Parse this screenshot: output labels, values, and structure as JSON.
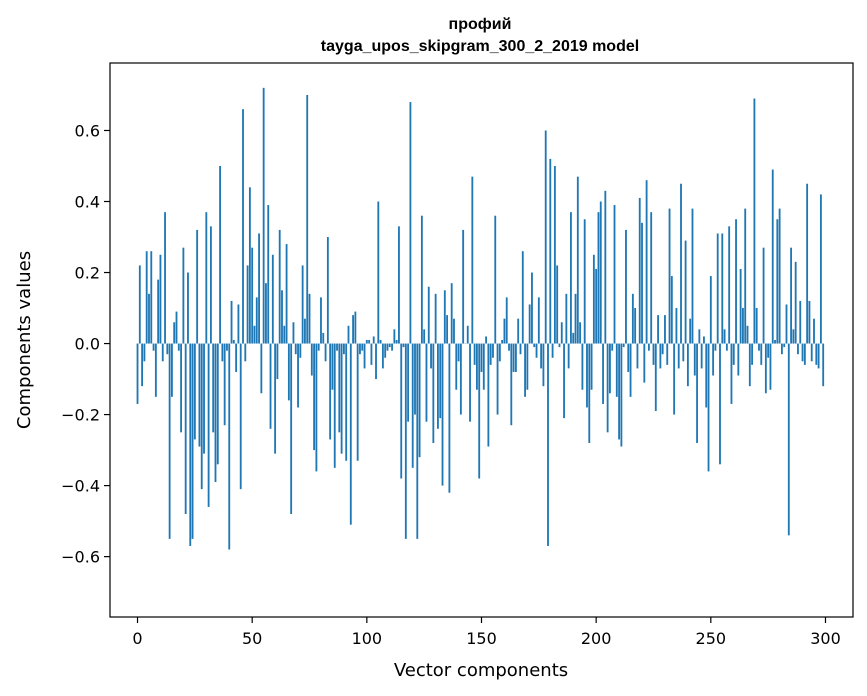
{
  "chart_data": {
    "type": "bar",
    "title": "профий",
    "subtitle": "tayga_upos_skipgram_300_2_2019 model",
    "xlabel": "Vector components",
    "ylabel": "Components values",
    "xlim": [
      -12,
      312
    ],
    "ylim": [
      -0.77,
      0.79
    ],
    "x_ticks": [
      0,
      50,
      100,
      150,
      200,
      250,
      300
    ],
    "y_ticks": [
      -0.6,
      -0.4,
      -0.2,
      0.0,
      0.2,
      0.4,
      0.6
    ],
    "x_tick_labels": [
      "0",
      "50",
      "100",
      "150",
      "200",
      "250",
      "300"
    ],
    "y_tick_labels": [
      "−0.6",
      "−0.4",
      "−0.2",
      "0.0",
      "0.2",
      "0.4",
      "0.6"
    ],
    "bar_color": "#1f77b4",
    "grid": false,
    "values": [
      -0.17,
      0.22,
      -0.12,
      -0.05,
      0.26,
      0.14,
      0.26,
      -0.02,
      -0.15,
      0.18,
      0.25,
      -0.05,
      0.37,
      -0.03,
      -0.55,
      -0.15,
      0.06,
      0.09,
      -0.02,
      -0.25,
      0.27,
      -0.48,
      0.2,
      -0.57,
      -0.55,
      -0.27,
      0.32,
      -0.29,
      -0.41,
      -0.31,
      0.37,
      -0.46,
      0.33,
      -0.25,
      -0.39,
      -0.34,
      0.5,
      -0.05,
      -0.23,
      -0.02,
      -0.58,
      0.12,
      0.01,
      -0.08,
      0.11,
      -0.41,
      0.66,
      -0.05,
      0.22,
      0.44,
      0.27,
      0.05,
      0.13,
      0.31,
      -0.14,
      0.72,
      0.17,
      0.39,
      -0.24,
      0.25,
      -0.31,
      -0.1,
      0.32,
      0.15,
      0.05,
      0.28,
      -0.16,
      -0.48,
      0.06,
      -0.03,
      -0.18,
      -0.04,
      0.22,
      0.07,
      0.7,
      0.14,
      -0.09,
      -0.3,
      -0.36,
      -0.02,
      0.13,
      0.03,
      -0.05,
      0.3,
      -0.27,
      -0.13,
      -0.35,
      -0.02,
      -0.25,
      -0.31,
      -0.03,
      -0.33,
      0.05,
      -0.51,
      0.08,
      0.09,
      -0.33,
      -0.03,
      -0.02,
      -0.07,
      0.01,
      0.01,
      -0.06,
      0.02,
      -0.1,
      0.4,
      0.01,
      -0.07,
      -0.04,
      -0.02,
      -0.01,
      -0.02,
      0.04,
      0.01,
      0.33,
      -0.38,
      -0.01,
      -0.55,
      -0.22,
      0.68,
      -0.35,
      -0.2,
      -0.55,
      -0.32,
      0.36,
      0.04,
      -0.22,
      0.16,
      -0.07,
      -0.28,
      0.14,
      -0.24,
      -0.21,
      -0.4,
      0.15,
      0.08,
      -0.42,
      0.17,
      0.07,
      -0.13,
      -0.05,
      -0.2,
      0.32,
      0.0,
      0.05,
      -0.22,
      0.47,
      -0.06,
      -0.13,
      -0.38,
      -0.08,
      -0.13,
      0.02,
      -0.29,
      -0.06,
      -0.04,
      0.36,
      -0.2,
      -0.05,
      0.01,
      0.07,
      0.13,
      -0.02,
      -0.23,
      -0.08,
      -0.08,
      0.07,
      -0.03,
      0.26,
      -0.15,
      -0.13,
      0.11,
      0.2,
      -0.01,
      -0.04,
      0.13,
      -0.07,
      -0.12,
      0.6,
      -0.57,
      0.52,
      -0.04,
      0.5,
      0.22,
      -0.01,
      0.06,
      -0.21,
      0.14,
      -0.07,
      0.37,
      0.03,
      0.14,
      0.47,
      0.06,
      -0.13,
      0.35,
      -0.18,
      -0.28,
      -0.13,
      0.25,
      0.21,
      0.37,
      0.4,
      -0.17,
      0.43,
      -0.25,
      -0.14,
      -0.02,
      0.39,
      -0.15,
      -0.27,
      -0.29,
      -0.01,
      0.32,
      -0.08,
      -0.15,
      0.14,
      0.1,
      -0.07,
      0.41,
      0.34,
      -0.11,
      0.46,
      -0.02,
      0.37,
      -0.06,
      -0.19,
      0.08,
      -0.07,
      -0.03,
      0.08,
      -0.06,
      0.38,
      0.19,
      -0.2,
      0.1,
      -0.07,
      0.45,
      -0.05,
      0.29,
      -0.12,
      0.07,
      0.38,
      -0.09,
      -0.28,
      0.04,
      -0.07,
      0.02,
      -0.18,
      -0.36,
      0.19,
      -0.09,
      -0.02,
      0.31,
      -0.34,
      0.31,
      0.04,
      -0.02,
      0.33,
      -0.17,
      -0.06,
      0.35,
      -0.09,
      0.21,
      0.1,
      0.38,
      0.05,
      -0.12,
      -0.06,
      0.69,
      0.1,
      -0.02,
      -0.06,
      0.27,
      -0.14,
      -0.04,
      -0.13,
      0.49,
      0.01,
      0.35,
      0.38,
      -0.03,
      -0.01,
      0.11,
      -0.54,
      0.27,
      0.04,
      0.23,
      -0.03,
      0.12,
      -0.05,
      -0.06,
      0.45,
      0.12,
      -0.05,
      0.07,
      -0.06,
      -0.07,
      0.42,
      -0.12
    ]
  }
}
